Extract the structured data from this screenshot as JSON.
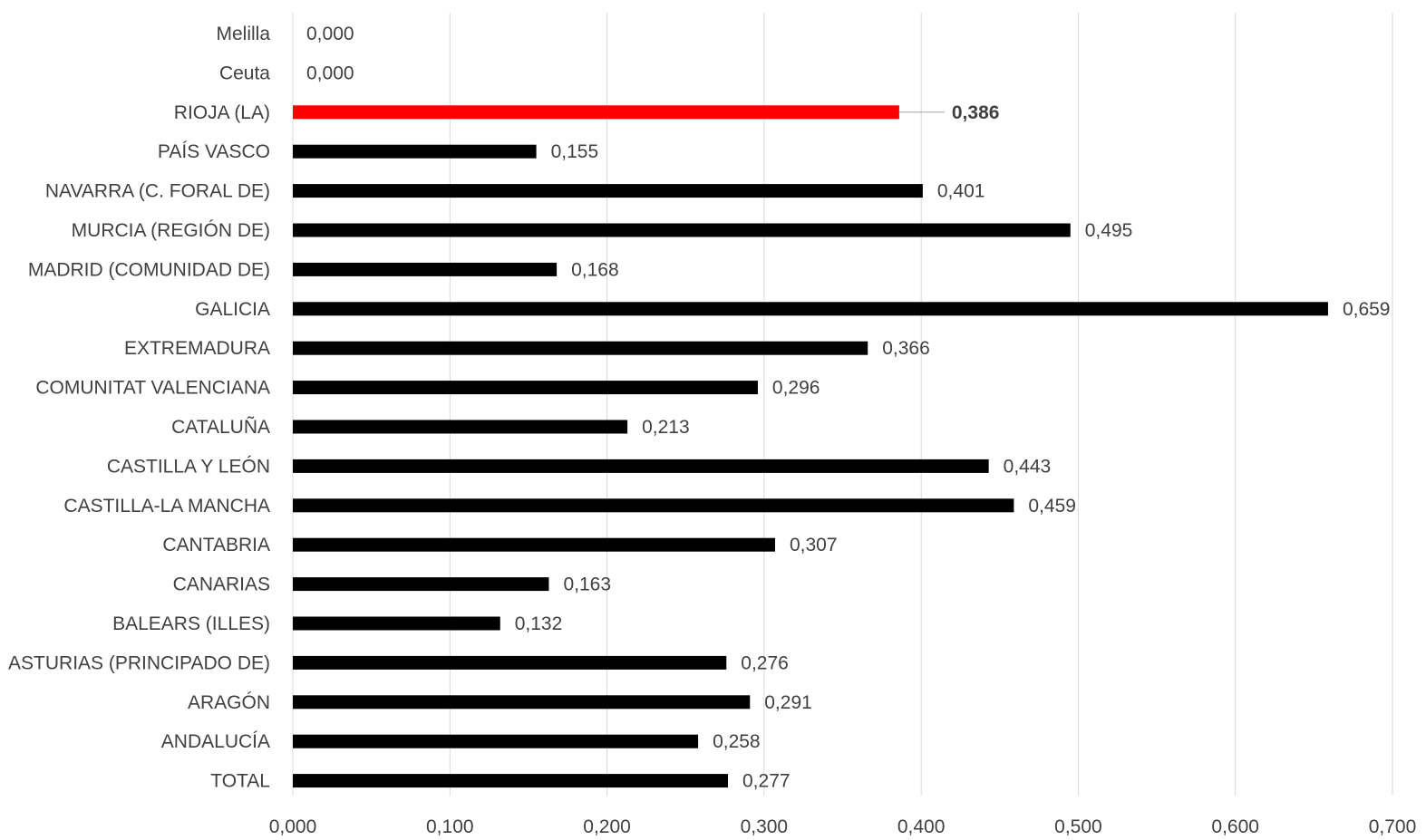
{
  "chart_data": {
    "type": "bar",
    "orientation": "horizontal",
    "categories": [
      "Melilla",
      "Ceuta",
      "RIOJA (LA)",
      "PAÍS VASCO",
      "NAVARRA (C. FORAL DE)",
      "MURCIA (REGIÓN DE)",
      "MADRID (COMUNIDAD DE)",
      "GALICIA",
      "EXTREMADURA",
      "COMUNITAT VALENCIANA",
      "CATALUÑA",
      "CASTILLA Y LEÓN",
      "CASTILLA-LA MANCHA",
      "CANTABRIA",
      "CANARIAS",
      "BALEARS (ILLES)",
      "ASTURIAS (PRINCIPADO DE)",
      "ARAGÓN",
      "ANDALUCÍA",
      "TOTAL"
    ],
    "values": [
      0.0,
      0.0,
      0.386,
      0.155,
      0.401,
      0.495,
      0.168,
      0.659,
      0.366,
      0.296,
      0.213,
      0.443,
      0.459,
      0.307,
      0.163,
      0.132,
      0.276,
      0.291,
      0.258,
      0.277
    ],
    "value_labels": [
      "0,000",
      "0,000",
      "0,386",
      "0,155",
      "0,401",
      "0,495",
      "0,168",
      "0,659",
      "0,366",
      "0,296",
      "0,213",
      "0,443",
      "0,459",
      "0,307",
      "0,163",
      "0,132",
      "0,276",
      "0,291",
      "0,258",
      "0,277"
    ],
    "highlight_category": "RIOJA (LA)",
    "xlim": [
      0,
      0.7
    ],
    "x_ticks": [
      0,
      0.1,
      0.2,
      0.3,
      0.4,
      0.5,
      0.6,
      0.7
    ],
    "x_tick_labels": [
      "0,000",
      "0,100",
      "0,200",
      "0,300",
      "0,400",
      "0,500",
      "0,600",
      "0,700"
    ],
    "title": "",
    "xlabel": "",
    "ylabel": "",
    "grid": "vertical",
    "legend": "none",
    "colors": {
      "bar": "#000000",
      "highlight": "#ff0000",
      "grid": "#d9d9d9",
      "text": "#404040"
    }
  }
}
